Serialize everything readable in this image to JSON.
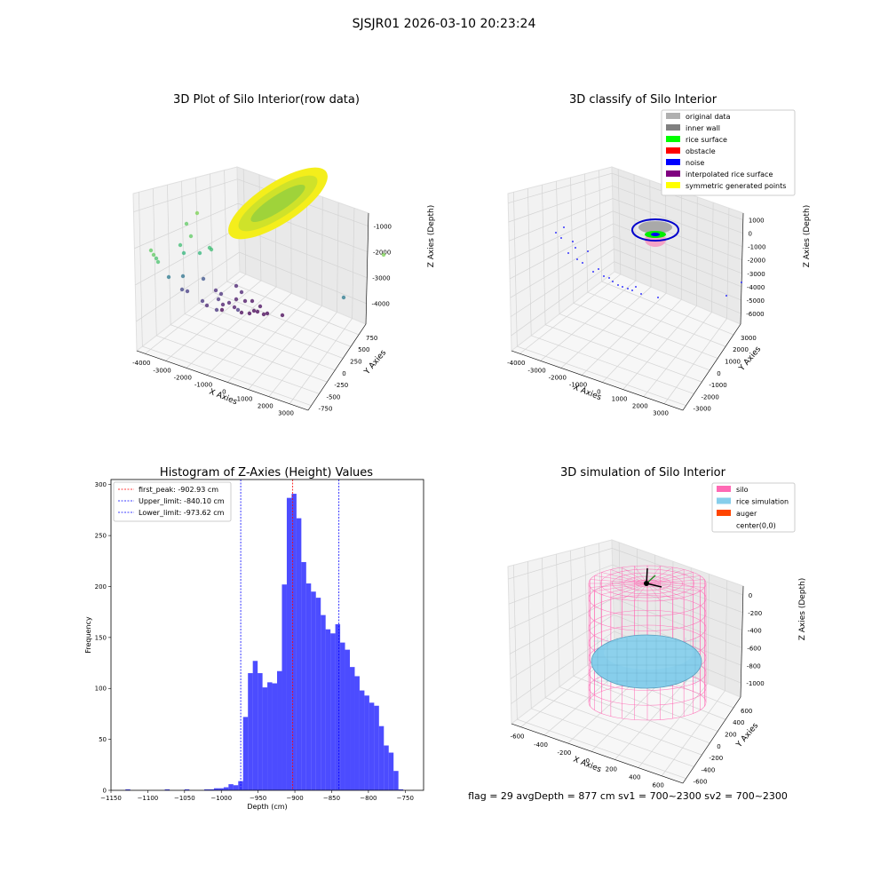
{
  "figure": {
    "suptitle": "SJSJR01 2026-03-10 20:23:24",
    "status_line": "flag = 29  avgDepth = 877 cm  sv1 = 700~2300  sv2 = 700~2300"
  },
  "chart_data": [
    {
      "type": "scatter",
      "subtype": "3d",
      "title": "3D Plot of Silo Interior(row data)",
      "xlabel": "X Axies",
      "ylabel": "Y Axies",
      "zlabel": "Z Axies (Depth)",
      "xticks": [
        "-4000",
        "-3000",
        "-2000",
        "-1000",
        "0",
        "1000",
        "2000",
        "3000"
      ],
      "yticks": [
        "-750",
        "-500",
        "-250",
        "0",
        "250",
        "500",
        "750"
      ],
      "zticks": [
        "-1000",
        "-2000",
        "-3000",
        "-4000"
      ],
      "colormap": "viridis",
      "colors": {
        "surface_yellow": "#f2ee1a",
        "surface_green": "#9fd33a"
      }
    },
    {
      "type": "scatter",
      "subtype": "3d",
      "title": "3D classify of Silo Interior",
      "xlabel": "X Axies",
      "ylabel": "Y Axies",
      "zlabel": "Z Axies (Depth)",
      "xticks": [
        "-4000",
        "-3000",
        "-2000",
        "-1000",
        "0",
        "1000",
        "2000",
        "3000"
      ],
      "yticks": [
        "-3000",
        "-2000",
        "-1000",
        "0",
        "1000",
        "2000",
        "3000"
      ],
      "zticks": [
        "1000",
        "0",
        "-1000",
        "-2000",
        "-3000",
        "-4000",
        "-5000",
        "-6000"
      ],
      "legend_position": "top-right",
      "legend": [
        {
          "label": "original data",
          "color": "#b0b0b0"
        },
        {
          "label": "inner wall",
          "color": "#808080"
        },
        {
          "label": "rice surface",
          "color": "#00ff00"
        },
        {
          "label": "obstacle",
          "color": "#ff0000"
        },
        {
          "label": "noise",
          "color": "#0000ff"
        },
        {
          "label": "interpolated rice surface",
          "color": "#800080"
        },
        {
          "label": "symmetric generated points",
          "color": "#ffff00"
        }
      ]
    },
    {
      "type": "bar",
      "subtype": "histogram",
      "title": "Histogram of Z-Axies (Height) Values",
      "xlabel": "Depth (cm)",
      "ylabel": "Frequency",
      "xlim": [
        -1150,
        -725
      ],
      "ylim": [
        0,
        305
      ],
      "xticks": [
        -1150,
        -1100,
        -1050,
        -1000,
        -950,
        -900,
        -850,
        -800,
        -750
      ],
      "yticks": [
        0,
        50,
        100,
        150,
        200,
        250,
        300
      ],
      "bar_color": "#0000ff",
      "bins": [
        {
          "x0": -1130.4,
          "x1": -1123.8,
          "value": 1
        },
        {
          "x0": -1076.8,
          "x1": -1070.2,
          "value": 1
        },
        {
          "x0": -1050.0,
          "x1": -1043.4,
          "value": 1
        },
        {
          "x0": -1023.2,
          "x1": -1016.6,
          "value": 1
        },
        {
          "x0": -1016.6,
          "x1": -1010.0,
          "value": 1
        },
        {
          "x0": -1010.0,
          "x1": -1003.4,
          "value": 2
        },
        {
          "x0": -1003.4,
          "x1": -996.8,
          "value": 2
        },
        {
          "x0": -996.8,
          "x1": -990.2,
          "value": 3
        },
        {
          "x0": -990.2,
          "x1": -983.6,
          "value": 6
        },
        {
          "x0": -983.6,
          "x1": -977.0,
          "value": 5
        },
        {
          "x0": -977.0,
          "x1": -970.4,
          "value": 9
        },
        {
          "x0": -970.4,
          "x1": -963.8,
          "value": 72
        },
        {
          "x0": -963.8,
          "x1": -957.2,
          "value": 115
        },
        {
          "x0": -957.2,
          "x1": -950.6,
          "value": 127
        },
        {
          "x0": -950.6,
          "x1": -944.0,
          "value": 115
        },
        {
          "x0": -944.0,
          "x1": -937.4,
          "value": 101
        },
        {
          "x0": -937.4,
          "x1": -930.8,
          "value": 106
        },
        {
          "x0": -930.8,
          "x1": -924.2,
          "value": 105
        },
        {
          "x0": -924.2,
          "x1": -917.6,
          "value": 117
        },
        {
          "x0": -917.6,
          "x1": -911.0,
          "value": 202
        },
        {
          "x0": -911.0,
          "x1": -904.4,
          "value": 287
        },
        {
          "x0": -904.4,
          "x1": -897.8,
          "value": 291
        },
        {
          "x0": -897.8,
          "x1": -891.2,
          "value": 267
        },
        {
          "x0": -891.2,
          "x1": -884.6,
          "value": 224
        },
        {
          "x0": -884.6,
          "x1": -878.0,
          "value": 203
        },
        {
          "x0": -878.0,
          "x1": -871.4,
          "value": 195
        },
        {
          "x0": -871.4,
          "x1": -864.8,
          "value": 189
        },
        {
          "x0": -864.8,
          "x1": -858.2,
          "value": 172
        },
        {
          "x0": -858.2,
          "x1": -851.6,
          "value": 158
        },
        {
          "x0": -851.6,
          "x1": -845.0,
          "value": 154
        },
        {
          "x0": -845.0,
          "x1": -838.4,
          "value": 163
        },
        {
          "x0": -838.4,
          "x1": -831.8,
          "value": 145
        },
        {
          "x0": -831.8,
          "x1": -825.2,
          "value": 138
        },
        {
          "x0": -825.2,
          "x1": -818.6,
          "value": 121
        },
        {
          "x0": -818.6,
          "x1": -812.0,
          "value": 112
        },
        {
          "x0": -812.0,
          "x1": -805.4,
          "value": 98
        },
        {
          "x0": -805.4,
          "x1": -798.8,
          "value": 93
        },
        {
          "x0": -798.8,
          "x1": -792.2,
          "value": 86
        },
        {
          "x0": -792.2,
          "x1": -785.6,
          "value": 83
        },
        {
          "x0": -785.6,
          "x1": -779.0,
          "value": 63
        },
        {
          "x0": -779.0,
          "x1": -772.4,
          "value": 44
        },
        {
          "x0": -772.4,
          "x1": -765.8,
          "value": 37
        },
        {
          "x0": -765.8,
          "x1": -759.2,
          "value": 19
        },
        {
          "x0": -759.2,
          "x1": -752.6,
          "value": 1
        }
      ],
      "vlines": [
        {
          "label": "first_peak: -902.93 cm",
          "x": -902.93,
          "color": "#ff0000"
        },
        {
          "label": "Upper_limit: -840.10 cm",
          "x": -840.1,
          "color": "#0000ff"
        },
        {
          "label": "Lower_limit: -973.62 cm",
          "x": -973.62,
          "color": "#0000ff"
        }
      ],
      "legend_position": "top-left"
    },
    {
      "type": "scatter",
      "subtype": "3d-surface",
      "title": "3D simulation of Silo Interior",
      "xlabel": "X Axies",
      "ylabel": "Y Axies",
      "zlabel": "Z Axies (Depth)",
      "xticks": [
        "-600",
        "-400",
        "-200",
        "0",
        "200",
        "400",
        "600"
      ],
      "yticks": [
        "-600",
        "-400",
        "-200",
        "0",
        "200",
        "400",
        "600"
      ],
      "zticks": [
        "0",
        "-200",
        "-400",
        "-600",
        "-800",
        "-1000"
      ],
      "legend_position": "top-right",
      "legend": [
        {
          "label": "silo",
          "color": "#ff69b4"
        },
        {
          "label": "rice simulation",
          "color": "#87ceeb"
        },
        {
          "label": "auger",
          "color": "#ff4500"
        },
        {
          "label": "center(0,0)",
          "color": ""
        }
      ]
    }
  ]
}
